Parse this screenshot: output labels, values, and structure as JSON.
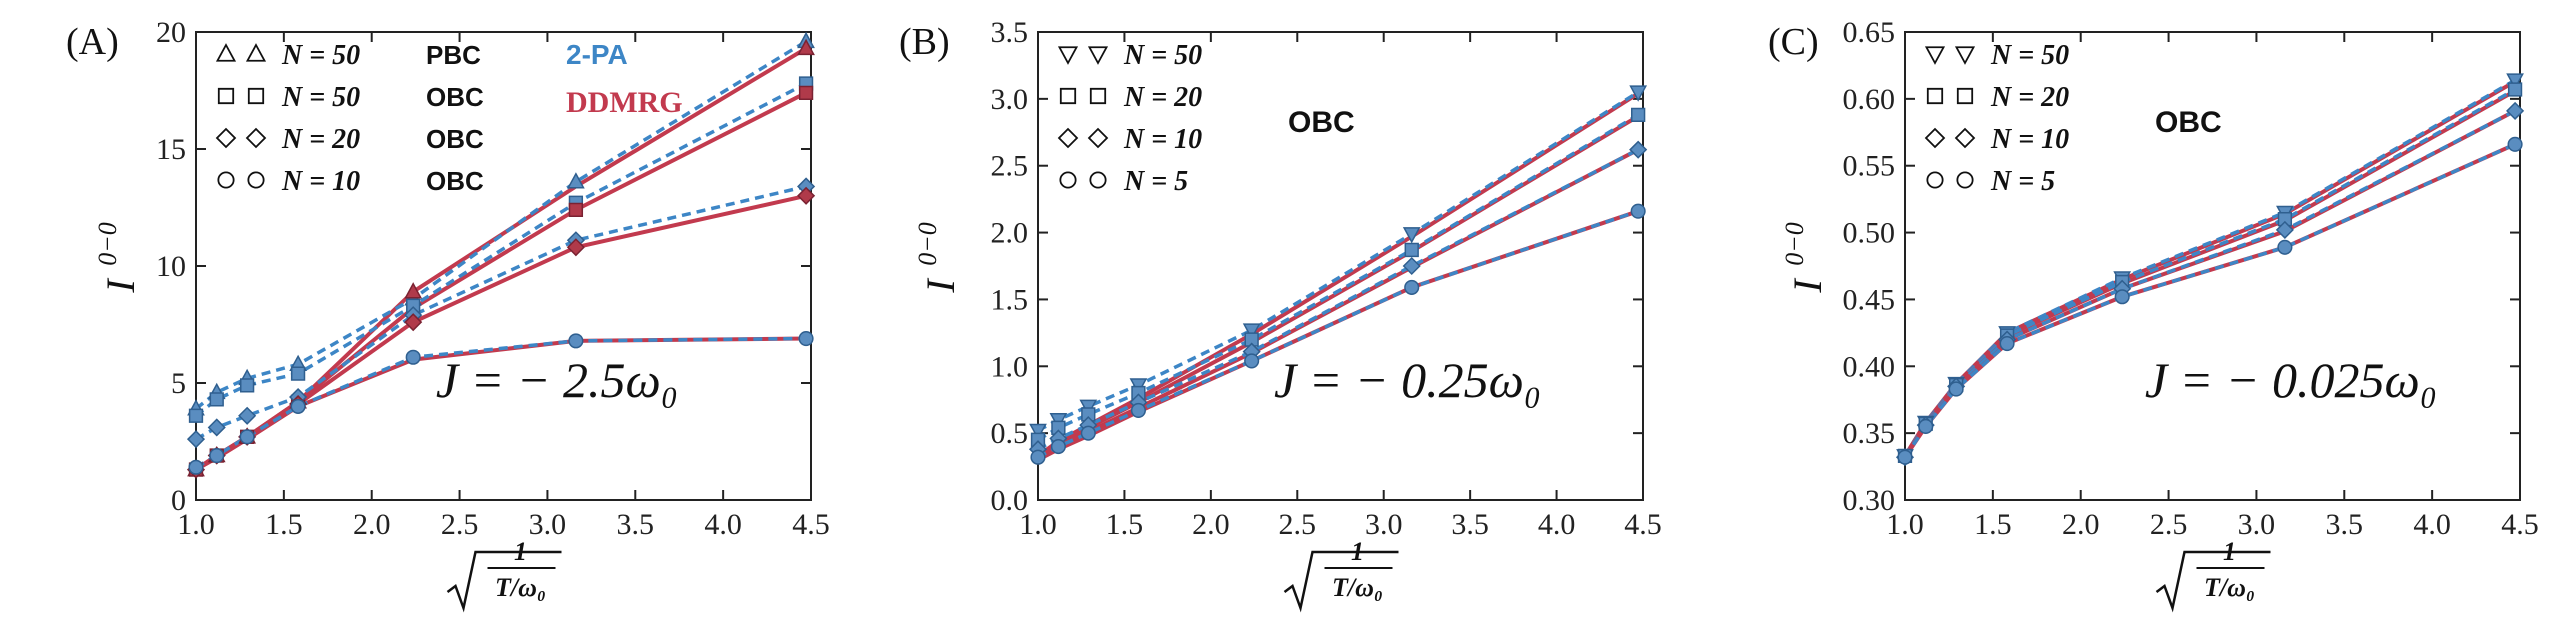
{
  "chart_data": [
    {
      "type": "line",
      "panel_label": "(A)",
      "ylabel": "I",
      "ylabel_sup": "0−0",
      "xlabel_num": "1",
      "xlabel_den": "T/ω₀",
      "xlim": [
        1.0,
        4.5
      ],
      "ylim": [
        0,
        20
      ],
      "xticks": [
        "1.0",
        "1.5",
        "2.0",
        "2.5",
        "3.0",
        "3.5",
        "4.0",
        "4.5"
      ],
      "yticks": [
        "0",
        "5",
        "10",
        "15",
        "20"
      ],
      "annotation": "J = − 2.5ω₀",
      "methods": {
        "pa": "2-PA",
        "dd": "DDMRG"
      },
      "legend": [
        {
          "marker": "triangle",
          "label": "N = 50",
          "bc": "PBC"
        },
        {
          "marker": "square",
          "label": "N = 50",
          "bc": "OBC"
        },
        {
          "marker": "diamond",
          "label": "N = 20",
          "bc": "OBC"
        },
        {
          "marker": "circle",
          "label": "N = 10",
          "bc": "OBC"
        }
      ],
      "x": [
        1.0,
        1.118,
        1.291,
        1.581,
        2.236,
        3.162,
        4.472
      ],
      "series": [
        {
          "name": "N = 50 PBC",
          "marker": "triangle",
          "dd": [
            1.3,
            1.9,
            2.7,
            4.2,
            8.9,
            13.4,
            19.3
          ],
          "pa": [
            3.9,
            4.6,
            5.2,
            5.8,
            8.6,
            13.6,
            19.6
          ]
        },
        {
          "name": "N = 50 OBC",
          "marker": "square",
          "dd": [
            1.3,
            1.9,
            2.7,
            4.2,
            8.2,
            12.4,
            17.4
          ],
          "pa": [
            3.6,
            4.3,
            4.9,
            5.4,
            8.3,
            12.7,
            17.8
          ]
        },
        {
          "name": "N = 20 OBC",
          "marker": "diamond",
          "dd": [
            1.3,
            1.9,
            2.7,
            4.1,
            7.6,
            10.8,
            13.0
          ],
          "pa": [
            2.6,
            3.1,
            3.6,
            4.4,
            7.9,
            11.1,
            13.4
          ]
        },
        {
          "name": "N = 10 OBC",
          "marker": "circle",
          "dd": [
            1.3,
            1.8,
            2.6,
            4.0,
            6.0,
            6.8,
            6.9
          ],
          "pa": [
            1.4,
            1.9,
            2.7,
            4.0,
            6.1,
            6.8,
            6.9
          ]
        }
      ]
    },
    {
      "type": "line",
      "panel_label": "(B)",
      "ylabel": "I",
      "ylabel_sup": "0−0",
      "xlabel_num": "1",
      "xlabel_den": "T/ω₀",
      "xlim": [
        1.0,
        4.5
      ],
      "ylim": [
        0.0,
        3.5
      ],
      "xticks": [
        "1.0",
        "1.5",
        "2.0",
        "2.5",
        "3.0",
        "3.5",
        "4.0",
        "4.5"
      ],
      "yticks": [
        "0.0",
        "0.5",
        "1.0",
        "1.5",
        "2.0",
        "2.5",
        "3.0",
        "3.5"
      ],
      "annotation": "J = − 0.25ω₀",
      "bc_label": "OBC",
      "legend": [
        {
          "marker": "triangle-down",
          "label": "N = 50"
        },
        {
          "marker": "square",
          "label": "N = 20"
        },
        {
          "marker": "diamond",
          "label": "N = 10"
        },
        {
          "marker": "circle",
          "label": "N = 5"
        }
      ],
      "x": [
        1.0,
        1.118,
        1.291,
        1.581,
        2.236,
        3.162,
        4.472
      ],
      "series": [
        {
          "name": "N = 50",
          "marker": "triangle-down",
          "dd": [
            0.33,
            0.44,
            0.56,
            0.76,
            1.24,
            1.97,
            3.04
          ],
          "pa": [
            0.52,
            0.6,
            0.7,
            0.86,
            1.27,
            1.99,
            3.05
          ]
        },
        {
          "name": "N = 20",
          "marker": "square",
          "dd": [
            0.32,
            0.42,
            0.54,
            0.73,
            1.18,
            1.86,
            2.87
          ],
          "pa": [
            0.45,
            0.54,
            0.64,
            0.8,
            1.2,
            1.87,
            2.88
          ]
        },
        {
          "name": "N = 10",
          "marker": "diamond",
          "dd": [
            0.31,
            0.4,
            0.51,
            0.69,
            1.1,
            1.74,
            2.62
          ],
          "pa": [
            0.38,
            0.46,
            0.56,
            0.73,
            1.11,
            1.75,
            2.62
          ]
        },
        {
          "name": "N = 5",
          "marker": "circle",
          "dd": [
            0.3,
            0.38,
            0.48,
            0.66,
            1.04,
            1.59,
            2.16
          ],
          "pa": [
            0.32,
            0.4,
            0.5,
            0.67,
            1.04,
            1.59,
            2.16
          ]
        }
      ]
    },
    {
      "type": "line",
      "panel_label": "(C)",
      "ylabel": "I",
      "ylabel_sup": "0−0",
      "xlabel_num": "1",
      "xlabel_den": "T/ω₀",
      "xlim": [
        1.0,
        4.5
      ],
      "ylim": [
        0.3,
        0.65
      ],
      "xticks": [
        "1.0",
        "1.5",
        "2.0",
        "2.5",
        "3.0",
        "3.5",
        "4.0",
        "4.5"
      ],
      "yticks": [
        "0.30",
        "0.35",
        "0.40",
        "0.45",
        "0.50",
        "0.55",
        "0.60",
        "0.65"
      ],
      "annotation": "J = − 0.025ω₀",
      "bc_label": "OBC",
      "legend": [
        {
          "marker": "triangle-down",
          "label": "N = 50"
        },
        {
          "marker": "square",
          "label": "N = 20"
        },
        {
          "marker": "diamond",
          "label": "N = 10"
        },
        {
          "marker": "circle",
          "label": "N = 5"
        }
      ],
      "x": [
        1.0,
        1.118,
        1.291,
        1.581,
        2.236,
        3.162,
        4.472
      ],
      "series": [
        {
          "name": "N = 50",
          "marker": "triangle-down",
          "dd": [
            0.333,
            0.358,
            0.387,
            0.425,
            0.465,
            0.514,
            0.613
          ],
          "pa": [
            0.333,
            0.358,
            0.387,
            0.425,
            0.466,
            0.515,
            0.614
          ]
        },
        {
          "name": "N = 20",
          "marker": "square",
          "dd": [
            0.333,
            0.357,
            0.386,
            0.423,
            0.462,
            0.509,
            0.606
          ],
          "pa": [
            0.333,
            0.357,
            0.386,
            0.423,
            0.463,
            0.51,
            0.607
          ]
        },
        {
          "name": "N = 10",
          "marker": "diamond",
          "dd": [
            0.332,
            0.356,
            0.385,
            0.42,
            0.458,
            0.501,
            0.591
          ],
          "pa": [
            0.332,
            0.356,
            0.385,
            0.42,
            0.458,
            0.502,
            0.591
          ]
        },
        {
          "name": "N = 5",
          "marker": "circle",
          "dd": [
            0.332,
            0.355,
            0.383,
            0.417,
            0.452,
            0.489,
            0.566
          ],
          "pa": [
            0.332,
            0.355,
            0.383,
            0.417,
            0.452,
            0.489,
            0.566
          ]
        }
      ]
    }
  ],
  "colors": {
    "dd": "#c23a4e",
    "pa": "#3d86c6",
    "marker_fill": "#5a8dc0",
    "marker_stroke": "#2f5f8f"
  }
}
